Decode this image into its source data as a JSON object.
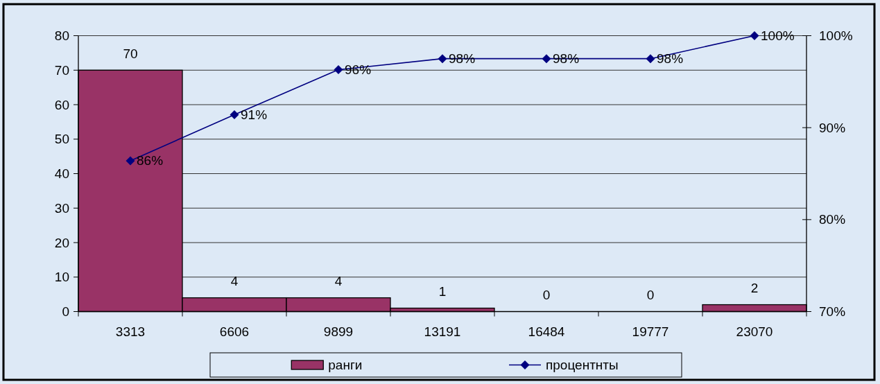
{
  "chart_data": {
    "type": "bar",
    "categories": [
      "3313",
      "6606",
      "9899",
      "13191",
      "16484",
      "19777",
      "23070"
    ],
    "series": [
      {
        "name": "ранги",
        "color": "#993366",
        "values": [
          70,
          4,
          4,
          1,
          0,
          0,
          2
        ],
        "value_labels": [
          "70",
          "4",
          "4",
          "1",
          "0",
          "0",
          "2"
        ]
      },
      {
        "name": "процентнты",
        "type": "line",
        "axis": "y2",
        "color": "#000080",
        "values": [
          86.4,
          91.4,
          96.3,
          97.5,
          97.5,
          97.5,
          100
        ],
        "value_labels": [
          "86%",
          "91%",
          "96%",
          "98%",
          "98%",
          "98%",
          "100%"
        ]
      }
    ],
    "ylim": [
      0,
      80
    ],
    "yticks": [
      0,
      10,
      20,
      30,
      40,
      50,
      60,
      70,
      80
    ],
    "y2lim": [
      70,
      100
    ],
    "y2ticks": [
      {
        "value": 70,
        "label": "70%"
      },
      {
        "value": 80,
        "label": "80%"
      },
      {
        "value": 90,
        "label": "90%"
      },
      {
        "value": 100,
        "label": "100%"
      }
    ],
    "grid": "y",
    "legend": "bottom",
    "marker": "diamond",
    "line_style": "solid"
  }
}
